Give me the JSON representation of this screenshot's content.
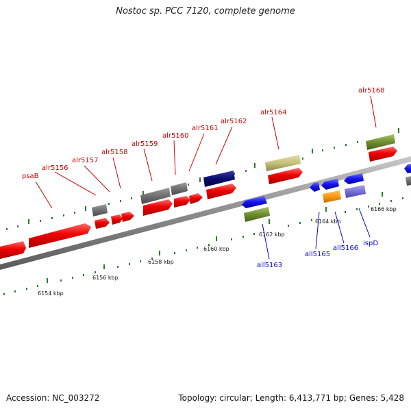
{
  "title": "Nostoc sp. PCC 7120, complete genome",
  "footer": {
    "accession": "Accession: NC_003272",
    "summary": "Topology: circular; Length: 6,413,771 bp; Genes: 5,428"
  },
  "colors": {
    "forward_label": "#cc0000",
    "reverse_label": "#0000cc",
    "tick_mark": "#2a7d2a",
    "backbone": "#8c8c8c"
  },
  "scale_labels": [
    "6154 kbp",
    "6156 kbp",
    "6158 kbp",
    "6160 kbp",
    "6162 kbp",
    "6164 kbp",
    "6166 kbp"
  ],
  "forward_labels": [
    "psaB",
    "alr5156",
    "alr5157",
    "alr5158",
    "alr5159",
    "alr5160",
    "alr5161",
    "alr5162",
    "alr5164",
    "alr5168"
  ],
  "reverse_labels": [
    "all5163",
    "all5165",
    "all5166",
    "ispD"
  ]
}
